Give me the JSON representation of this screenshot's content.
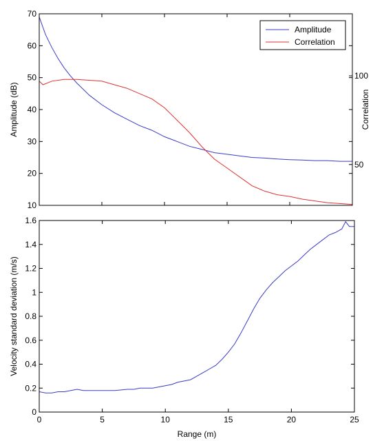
{
  "chart_data": [
    {
      "type": "line",
      "xlim": [
        0,
        25
      ],
      "x_ticks": [
        "",
        "",
        "",
        "",
        "",
        ""
      ],
      "ylim": [
        10,
        70
      ],
      "y_ticks": [
        "10",
        "20",
        "30",
        "40",
        "50",
        "60",
        "70"
      ],
      "ylabel": "Amplitude (dB)",
      "y2lim": [
        27,
        135
      ],
      "y2_ticks": [
        "50",
        "100"
      ],
      "y2label": "Correlation",
      "grid": false,
      "legend_position": "top-right",
      "series": [
        {
          "name": "Amplitude",
          "color": "#3a3ac8",
          "axis": "left",
          "x": [
            0,
            0.5,
            1,
            1.5,
            2,
            2.5,
            3,
            4,
            5,
            6,
            7,
            8,
            9,
            10,
            11,
            12,
            13,
            14,
            15,
            16,
            17,
            18,
            19,
            20,
            21,
            22,
            23,
            24,
            25
          ],
          "y": [
            69,
            63.5,
            59.5,
            56,
            53,
            50.5,
            48.3,
            44.5,
            41.5,
            39,
            37,
            35,
            33.5,
            31.5,
            30,
            28.5,
            27.5,
            26.5,
            26,
            25.5,
            25,
            24.8,
            24.5,
            24.3,
            24.2,
            24,
            24,
            23.8,
            23.8
          ]
        },
        {
          "name": "Correlation",
          "color": "#e03030",
          "axis": "right",
          "x": [
            0,
            0.3,
            1,
            2,
            3,
            4,
            5,
            6,
            7,
            8,
            9,
            10,
            11,
            12,
            13,
            14,
            15,
            16,
            17,
            18,
            19,
            20,
            21,
            22,
            23,
            24,
            25
          ],
          "y": [
            97,
            95,
            97,
            98,
            98,
            97.5,
            97,
            95,
            93,
            90,
            87,
            82,
            75,
            68,
            60,
            53,
            48,
            43,
            38,
            35,
            33,
            32,
            30.5,
            29.5,
            28.5,
            28,
            27.5
          ]
        }
      ]
    },
    {
      "type": "line",
      "xlim": [
        0,
        25
      ],
      "x_ticks": [
        "0",
        "5",
        "10",
        "15",
        "20",
        "25"
      ],
      "xlabel": "Range (m)",
      "ylim": [
        0,
        1.6
      ],
      "y_ticks": [
        "0",
        "0.2",
        "0.4",
        "0.6",
        "0.8",
        "1",
        "1.2",
        "1.4",
        "1.6"
      ],
      "ylabel": "Velocity standard deviation (m/s)",
      "grid": false,
      "series": [
        {
          "color": "#3a3ac8",
          "x": [
            0,
            0.5,
            1,
            1.5,
            2,
            2.5,
            3,
            3.5,
            4,
            5,
            6,
            7,
            7.5,
            8,
            9,
            10,
            10.5,
            11,
            12,
            12.5,
            13,
            13.5,
            14,
            14.5,
            15,
            15.5,
            16,
            16.5,
            17,
            17.5,
            18,
            18.5,
            19,
            19.5,
            20,
            20.5,
            21,
            21.5,
            22,
            22.5,
            23,
            23.5,
            24,
            24.3,
            24.6,
            25
          ],
          "y": [
            0.17,
            0.16,
            0.16,
            0.17,
            0.17,
            0.18,
            0.19,
            0.18,
            0.18,
            0.18,
            0.18,
            0.19,
            0.19,
            0.2,
            0.2,
            0.22,
            0.23,
            0.25,
            0.27,
            0.3,
            0.33,
            0.36,
            0.39,
            0.44,
            0.5,
            0.57,
            0.66,
            0.76,
            0.86,
            0.95,
            1.02,
            1.08,
            1.13,
            1.18,
            1.22,
            1.26,
            1.31,
            1.36,
            1.4,
            1.44,
            1.48,
            1.5,
            1.53,
            1.59,
            1.55,
            1.55
          ]
        }
      ]
    }
  ]
}
